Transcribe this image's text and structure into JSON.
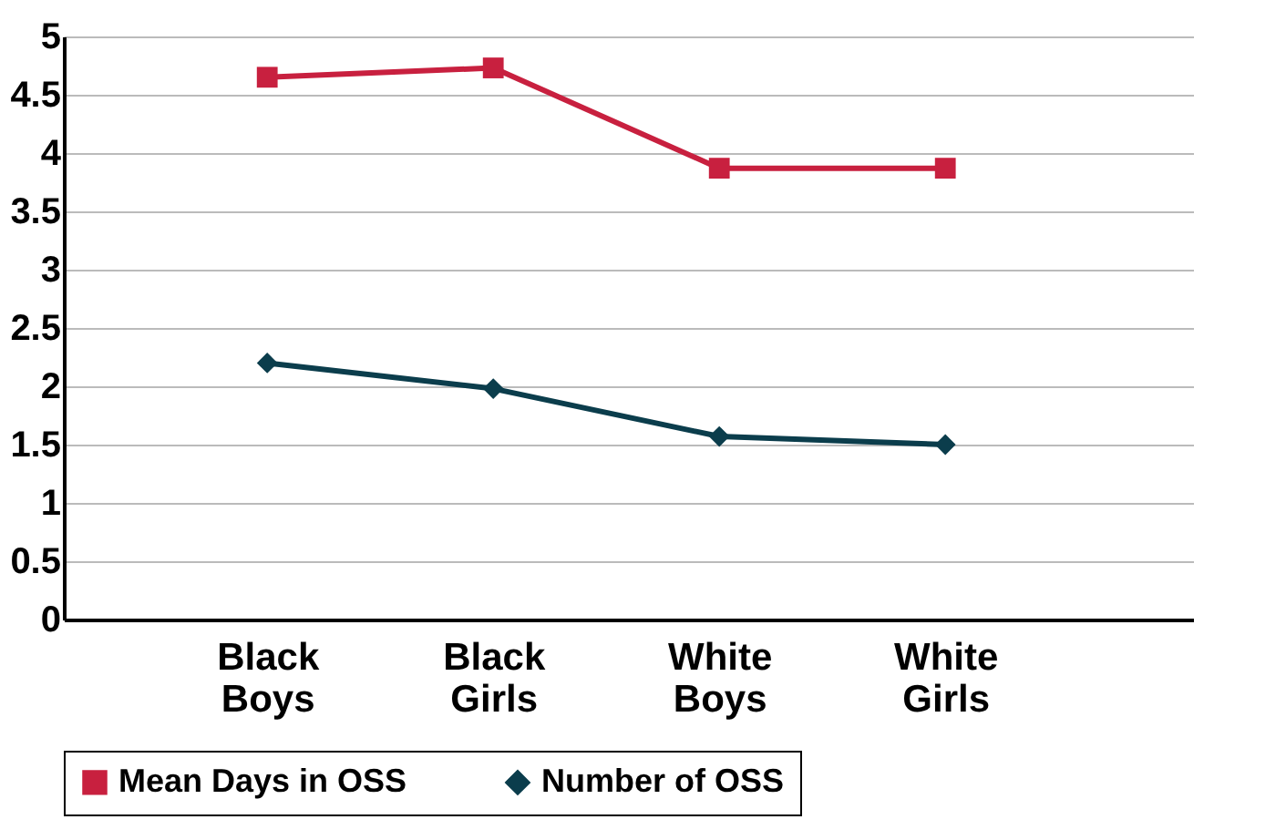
{
  "chart_data": {
    "type": "line",
    "categories": [
      "Black Boys",
      "Black Girls",
      "White Boys",
      "White Girls"
    ],
    "series": [
      {
        "name": "Mean Days in OSS",
        "color": "#c8203f",
        "marker": "square",
        "values": [
          4.65,
          4.73,
          3.87,
          3.87
        ]
      },
      {
        "name": "Number of OSS",
        "color": "#0b3d4c",
        "marker": "diamond",
        "values": [
          2.2,
          1.98,
          1.57,
          1.5
        ]
      }
    ],
    "ylim": [
      0,
      5
    ],
    "yticks": [
      0,
      0.5,
      1,
      1.5,
      2,
      2.5,
      3,
      3.5,
      4,
      4.5,
      5
    ],
    "grid": "y",
    "legend": "bottom",
    "line_style": "solid"
  }
}
